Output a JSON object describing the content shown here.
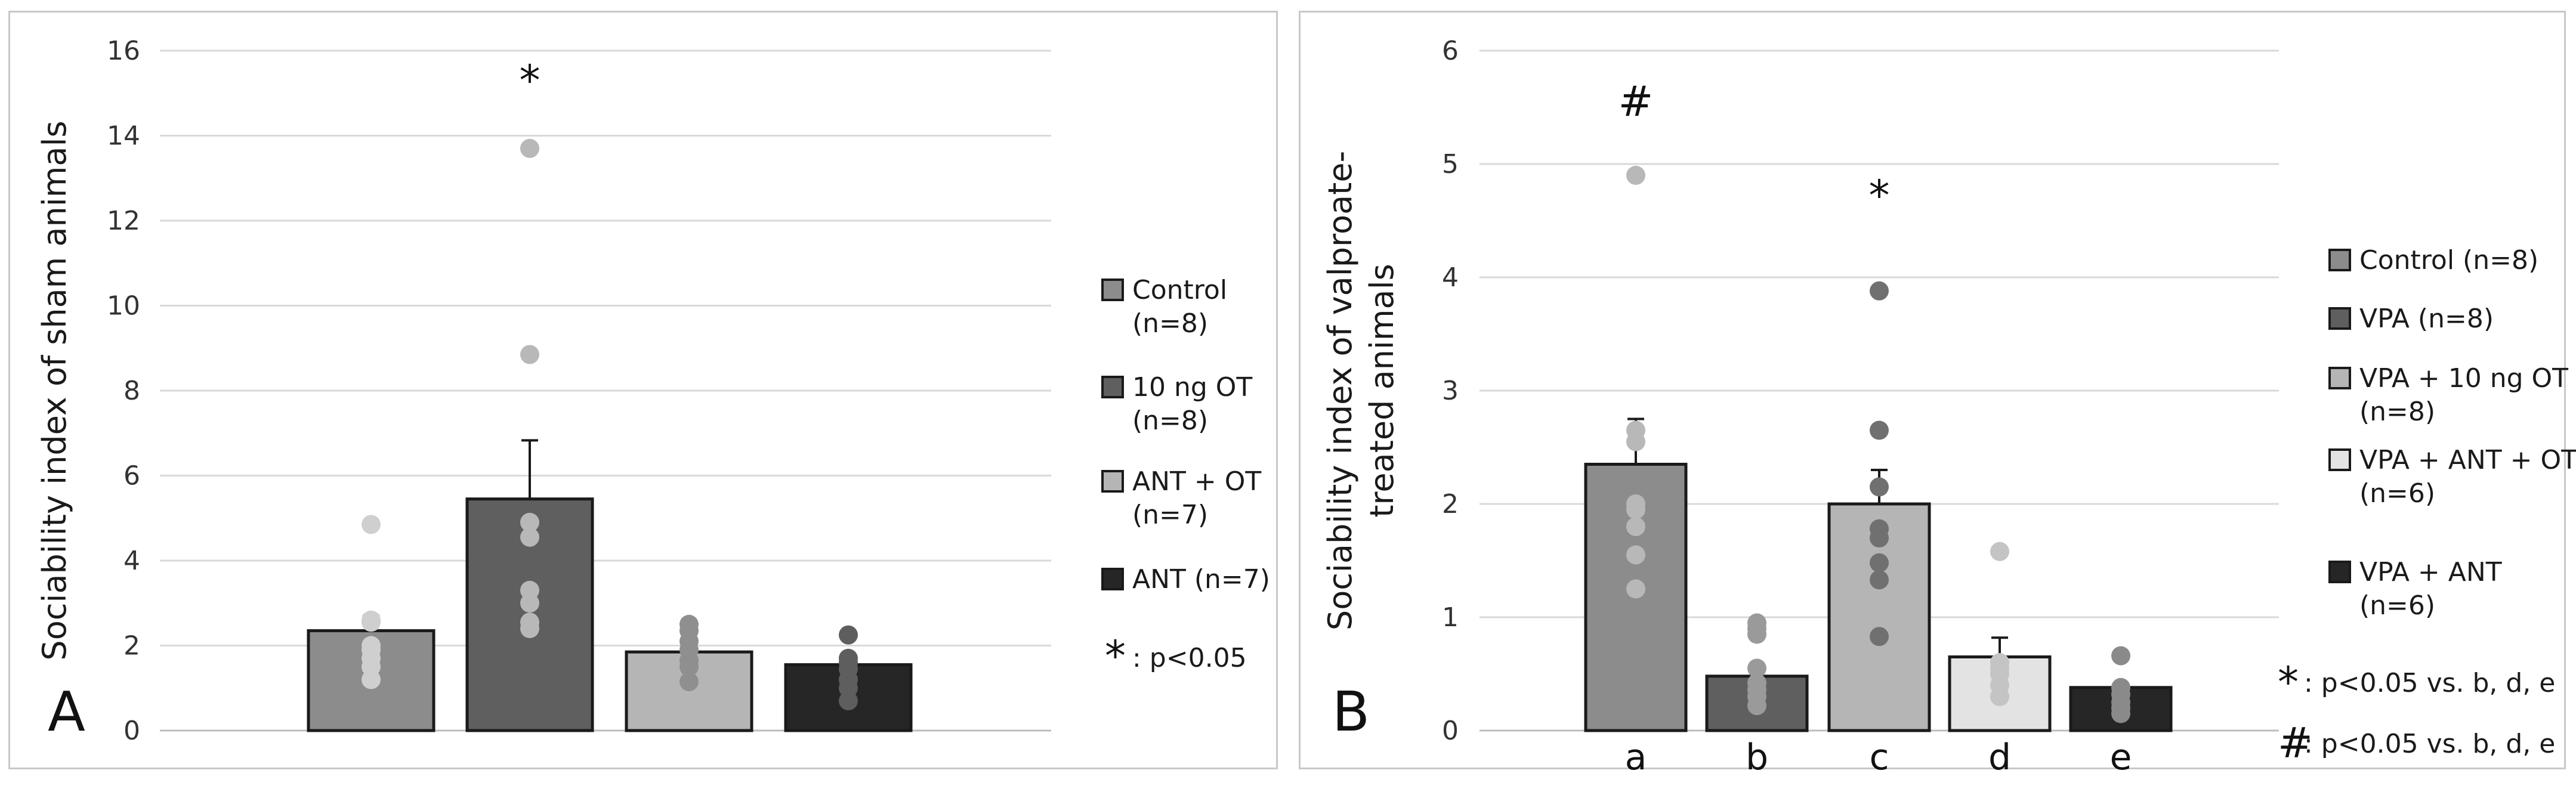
{
  "chart_data": [
    {
      "type": "bar",
      "panel_letter": "A",
      "ylabel": "Sociability index of sham animals",
      "ylim": [
        0,
        16
      ],
      "yticks": [
        0,
        2,
        4,
        6,
        8,
        10,
        12,
        14,
        16
      ],
      "categories": [
        "",
        "",
        "",
        ""
      ],
      "series": [
        {
          "name": "Control (n=8)",
          "legend_lines": [
            "Control",
            "(n=8)"
          ],
          "color": "#8c8c8c",
          "dot_color": "#cfcfcf",
          "value": 2.35,
          "error": 0.35,
          "points": [
            1.2,
            1.5,
            1.7,
            1.9,
            2.0,
            2.55,
            2.6,
            4.85
          ]
        },
        {
          "name": "10 ng OT (n=8)",
          "legend_lines": [
            "10 ng OT",
            "(n=8)"
          ],
          "color": "#5f5f5f",
          "dot_color": "#b8b8b8",
          "value": 5.45,
          "error": 1.38,
          "points": [
            2.4,
            2.55,
            3.0,
            3.3,
            4.55,
            4.9,
            8.85,
            13.7
          ]
        },
        {
          "name": "ANT + OT (n=7)",
          "legend_lines": [
            "ANT + OT",
            "(n=7)"
          ],
          "color": "#b5b5b5",
          "dot_color": "#8f8f8f",
          "value": 1.85,
          "error": 0.0,
          "points": [
            1.15,
            1.5,
            1.65,
            1.9,
            2.1,
            2.35,
            2.5
          ]
        },
        {
          "name": "ANT (n=7)",
          "legend_lines": [
            "ANT (n=7)"
          ],
          "color": "#262626",
          "dot_color": "#5e5e5e",
          "value": 1.55,
          "error": 0.0,
          "points": [
            0.7,
            1.0,
            1.2,
            1.45,
            1.6,
            1.7,
            2.25
          ]
        }
      ],
      "annotations": [
        {
          "text": "*",
          "series_index": 1,
          "y": 15.3
        }
      ],
      "significance_note": {
        "symbol": "*",
        "text": ": p<0.05"
      }
    },
    {
      "type": "bar",
      "panel_letter": "B",
      "ylabel": "Sociability index of valproate-",
      "ylabel_line2": "treated animals",
      "ylim": [
        0,
        6
      ],
      "yticks": [
        0,
        1,
        2,
        3,
        4,
        5,
        6
      ],
      "categories": [
        "a",
        "b",
        "c",
        "d",
        "e"
      ],
      "series": [
        {
          "name": "Control (n=8)",
          "legend_lines": [
            "Control (n=8)"
          ],
          "color": "#8c8c8c",
          "dot_color": "#b8b8b8",
          "value": 2.35,
          "error": 0.4,
          "points": [
            1.25,
            1.55,
            1.8,
            1.95,
            2.0,
            2.55,
            2.65,
            4.9
          ]
        },
        {
          "name": "VPA (n=8)",
          "legend_lines": [
            "VPA (n=8)"
          ],
          "color": "#5f5f5f",
          "dot_color": "#9a9a9a",
          "value": 0.48,
          "error": 0.0,
          "points": [
            0.22,
            0.3,
            0.36,
            0.42,
            0.55,
            0.85,
            0.9,
            0.95
          ]
        },
        {
          "name": "VPA + 10 ng OT (n=8)",
          "legend_lines": [
            "VPA + 10 ng OT",
            "(n=8)"
          ],
          "color": "#b5b5b5",
          "dot_color": "#707070",
          "value": 2.0,
          "error": 0.3,
          "points": [
            0.83,
            1.33,
            1.48,
            1.7,
            1.78,
            2.15,
            2.65,
            3.88
          ]
        },
        {
          "name": "VPA + ANT + OT (n=6)",
          "legend_lines": [
            "VPA + ANT + OT",
            "(n=6)"
          ],
          "color": "#e3e3e3",
          "dot_color": "#c4c4c4",
          "value": 0.65,
          "error": 0.17,
          "points": [
            0.3,
            0.4,
            0.5,
            0.55,
            0.6,
            1.58
          ]
        },
        {
          "name": "VPA + ANT (n=6)",
          "legend_lines": [
            "VPA + ANT",
            "(n=6)"
          ],
          "color": "#262626",
          "dot_color": "#8a8a8a",
          "value": 0.38,
          "error": 0.0,
          "points": [
            0.15,
            0.2,
            0.25,
            0.32,
            0.38,
            0.66
          ]
        }
      ],
      "annotations": [
        {
          "text": "#",
          "series_index": 0,
          "y": 5.55
        },
        {
          "text": "*",
          "series_index": 2,
          "y": 4.72
        }
      ],
      "significance_notes": [
        {
          "symbol": "*",
          "text": ": p<0.05 vs. b, d, e"
        },
        {
          "symbol": "#",
          "text": ": p<0.05 vs. b, d, e"
        }
      ]
    }
  ]
}
